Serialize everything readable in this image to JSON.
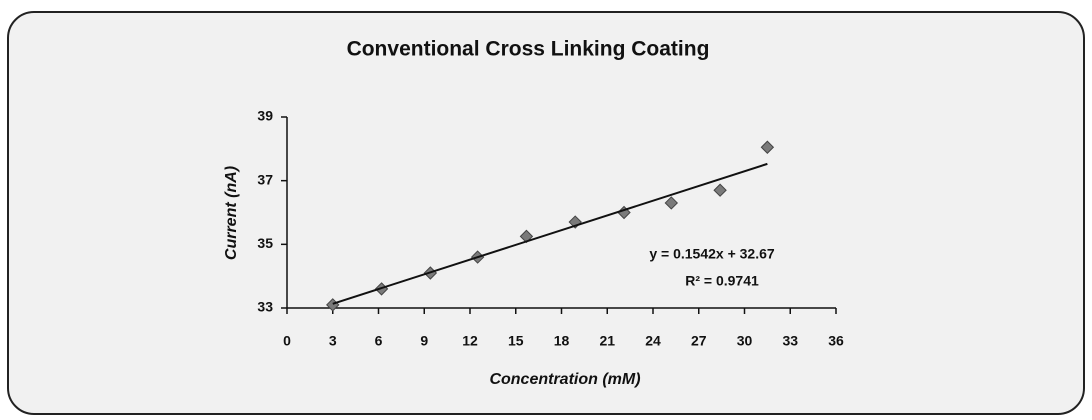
{
  "chart_data": {
    "type": "scatter",
    "title": "Conventional Cross Linking Coating",
    "x_label": "Concentration (mM)",
    "y_label": "Current (nA)",
    "series": [
      {
        "name": "Current",
        "color": "#7a7a7a",
        "x": [
          3,
          6.2,
          9.4,
          12.5,
          15.7,
          18.9,
          22.1,
          25.2,
          28.4,
          31.5
        ],
        "values": [
          33.1,
          33.6,
          34.1,
          34.6,
          35.25,
          35.7,
          36.0,
          36.3,
          36.7,
          38.05
        ]
      }
    ],
    "trendline": {
      "slope": 0.1542,
      "intercept": 32.67,
      "color": "#111111",
      "equation": "y = 0.1542x + 32.67",
      "r2": "R² = 0.9741"
    },
    "xlim": [
      0,
      36
    ],
    "xticks": [
      0,
      3,
      6,
      9,
      12,
      15,
      18,
      21,
      24,
      27,
      30,
      33,
      36
    ],
    "ylim": [
      33,
      39
    ],
    "yticks": [
      33,
      35,
      37,
      39
    ],
    "grid": false
  }
}
